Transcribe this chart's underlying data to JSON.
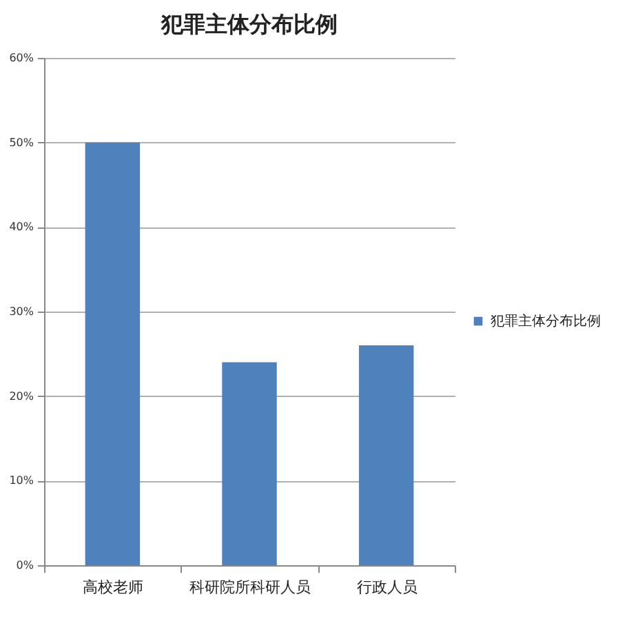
{
  "chart_data": {
    "type": "bar",
    "title": "犯罪主体分布比例",
    "categories": [
      "高校老师",
      "科研院所科研人员",
      "行政人员"
    ],
    "series": [
      {
        "name": "犯罪主体分布比例",
        "color": "#4f81bd",
        "values": [
          50,
          24,
          26
        ]
      }
    ],
    "ylim": [
      0,
      60
    ],
    "yticks": [
      {
        "value": 0,
        "label": "0%"
      },
      {
        "value": 10,
        "label": "10%"
      },
      {
        "value": 20,
        "label": "20%"
      },
      {
        "value": 30,
        "label": "30%"
      },
      {
        "value": 40,
        "label": "40%"
      },
      {
        "value": 50,
        "label": "50%"
      },
      {
        "value": 60,
        "label": "60%"
      }
    ],
    "grid": "y",
    "legend": "right"
  }
}
